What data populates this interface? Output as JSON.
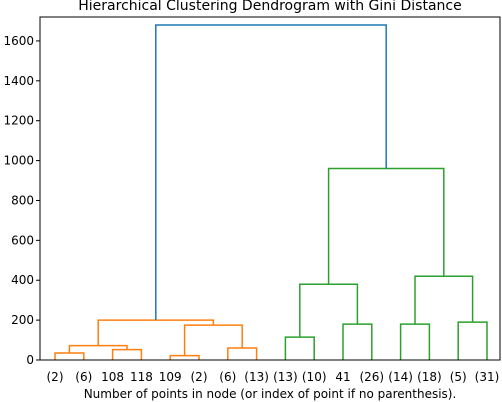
{
  "chart_data": {
    "type": "dendrogram",
    "title": "Hierarchical Clustering Dendrogram with Gini Distance",
    "xlabel": "Number of points in node (or index of point if no parenthesis).",
    "ylabel": "",
    "ylim": [
      0,
      1720
    ],
    "yticks": [
      0,
      200,
      400,
      600,
      800,
      1000,
      1200,
      1400,
      1600
    ],
    "leaf_labels": [
      "(2)",
      "(6)",
      "108",
      "118",
      "109",
      "(2)",
      "(6)",
      "(13)",
      "(13)",
      "(10)",
      "41",
      "(26)",
      "(14)",
      "(18)",
      "(5)",
      "(31)"
    ],
    "colors": {
      "orange": "#ff7f0e",
      "green": "#2ca02c",
      "blue": "#1f77b4"
    },
    "links": [
      {
        "left_pos": 0,
        "left_h": 0,
        "right_pos": 1,
        "right_h": 0,
        "height": 35,
        "color": "orange"
      },
      {
        "left_pos": 2,
        "left_h": 0,
        "right_pos": 3,
        "right_h": 0,
        "height": 52,
        "color": "orange"
      },
      {
        "left_pos": 0.5,
        "left_h": 35,
        "right_pos": 2.5,
        "right_h": 52,
        "height": 72,
        "color": "orange"
      },
      {
        "left_pos": 4,
        "left_h": 0,
        "right_pos": 5,
        "right_h": 0,
        "height": 22,
        "color": "orange"
      },
      {
        "left_pos": 6,
        "left_h": 0,
        "right_pos": 7,
        "right_h": 0,
        "height": 60,
        "color": "orange"
      },
      {
        "left_pos": 4.5,
        "left_h": 22,
        "right_pos": 6.5,
        "right_h": 60,
        "height": 175,
        "color": "orange"
      },
      {
        "left_pos": 1.5,
        "left_h": 72,
        "right_pos": 5.5,
        "right_h": 175,
        "height": 200,
        "color": "orange"
      },
      {
        "left_pos": 8,
        "left_h": 0,
        "right_pos": 9,
        "right_h": 0,
        "height": 115,
        "color": "green"
      },
      {
        "left_pos": 10,
        "left_h": 0,
        "right_pos": 11,
        "right_h": 0,
        "height": 180,
        "color": "green"
      },
      {
        "left_pos": 8.5,
        "left_h": 115,
        "right_pos": 10.5,
        "right_h": 180,
        "height": 380,
        "color": "green"
      },
      {
        "left_pos": 12,
        "left_h": 0,
        "right_pos": 13,
        "right_h": 0,
        "height": 180,
        "color": "green"
      },
      {
        "left_pos": 14,
        "left_h": 0,
        "right_pos": 15,
        "right_h": 0,
        "height": 190,
        "color": "green"
      },
      {
        "left_pos": 12.5,
        "left_h": 180,
        "right_pos": 14.5,
        "right_h": 190,
        "height": 420,
        "color": "green"
      },
      {
        "left_pos": 9.5,
        "left_h": 380,
        "right_pos": 13.5,
        "right_h": 420,
        "height": 960,
        "color": "green"
      },
      {
        "left_pos": 3.5,
        "left_h": 200,
        "right_pos": 11.5,
        "right_h": 960,
        "height": 1680,
        "color": "blue"
      }
    ]
  }
}
